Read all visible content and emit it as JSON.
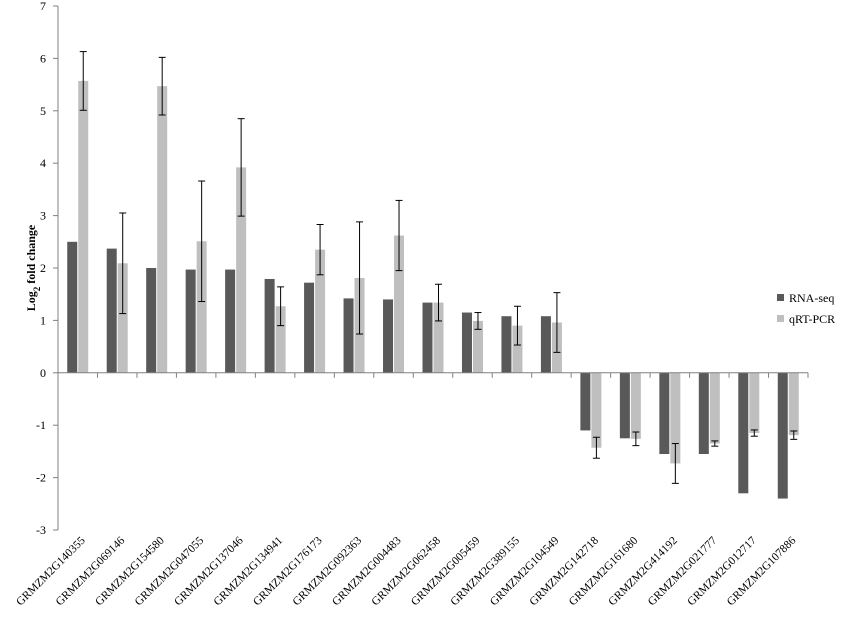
{
  "chart_data": {
    "type": "bar",
    "title": "",
    "xlabel": "",
    "ylabel_main": "Log",
    "ylabel_sub": "2",
    "ylabel_rest": " fold change",
    "ylim": [
      -3,
      7
    ],
    "yticks": [
      "7",
      "6",
      "5",
      "4",
      "3",
      "2",
      "1",
      "0",
      "-1",
      "-2",
      "-3"
    ],
    "grid": false,
    "legend_position": "right",
    "categories": [
      "GRMZM2G140355",
      "GRMZM2G069146",
      "GRMZM2G154580",
      "GRMZM2G047055",
      "GRMZM2G137046",
      "GRMZM2G134941",
      "GRMZM2G176173",
      "GRMZM2G092363",
      "GRMZM2G004483",
      "GRMZM2G062458",
      "GRMZM2G005459",
      "GRMZM2G389155",
      "GRMZM2G104549",
      "GRMZM2G142718",
      "GRMZM2G161680",
      "GRMZM2G414192",
      "GRMZM2G021777",
      "GRMZM2G012717",
      "GRMZM2G107886"
    ],
    "series": [
      {
        "name": "RNA-seq",
        "color": "#595959",
        "values": [
          2.5,
          2.37,
          2.0,
          1.97,
          1.97,
          1.79,
          1.72,
          1.42,
          1.4,
          1.34,
          1.15,
          1.08,
          1.08,
          -1.1,
          -1.25,
          -1.55,
          -1.55,
          -2.3,
          -2.4
        ]
      },
      {
        "name": "qRT-PCR",
        "color": "#bfbfbf",
        "values": [
          5.57,
          2.09,
          5.47,
          2.51,
          3.92,
          1.27,
          2.35,
          1.81,
          2.62,
          1.34,
          0.99,
          0.9,
          0.96,
          -1.43,
          -1.26,
          -1.73,
          -1.35,
          -1.15,
          -1.19
        ],
        "errors": [
          0.56,
          0.96,
          0.55,
          1.15,
          0.93,
          0.37,
          0.48,
          1.07,
          0.67,
          0.35,
          0.16,
          0.37,
          0.57,
          0.2,
          0.13,
          0.38,
          0.05,
          0.06,
          0.08
        ]
      }
    ]
  }
}
